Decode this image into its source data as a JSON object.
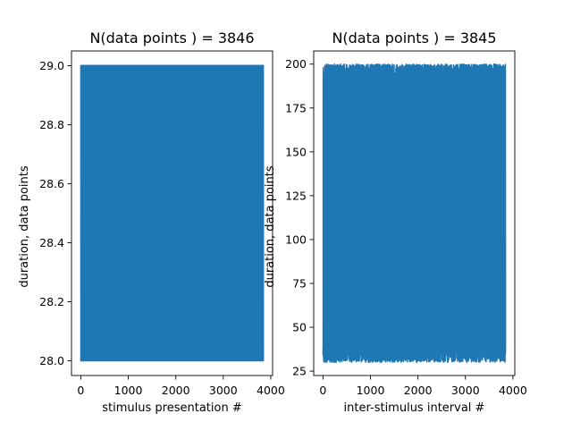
{
  "chart_data": [
    {
      "type": "line",
      "title": "N(data points ) = 3846",
      "xlabel": "stimulus presentation #",
      "ylabel": "duration, data points",
      "xlim": [
        -196,
        4039
      ],
      "ylim": [
        27.95,
        29.05
      ],
      "x_ticks": [
        0,
        1000,
        2000,
        3000,
        4000
      ],
      "x_tick_labels": [
        "0",
        "1000",
        "2000",
        "3000",
        "4000"
      ],
      "y_ticks": [
        28.0,
        28.2,
        28.4,
        28.6,
        28.8,
        29.0
      ],
      "y_tick_labels": [
        "28.0",
        "28.2",
        "28.4",
        "28.6",
        "28.8",
        "29.0"
      ],
      "grid": false,
      "series": [
        {
          "color": "#1f77b4",
          "n_points": 3846,
          "x_range": [
            0,
            3845
          ],
          "values_range": [
            28.0,
            29.0
          ],
          "pattern": "values alternate between 28 and 29 across all points"
        }
      ]
    },
    {
      "type": "line",
      "title": "N(data points ) = 3845",
      "xlabel": "inter-stimulus interval #",
      "ylabel": "duration, data points",
      "xlim": [
        -196,
        4040
      ],
      "ylim": [
        22.5,
        207.5
      ],
      "x_ticks": [
        0,
        1000,
        2000,
        3000,
        4000
      ],
      "x_tick_labels": [
        "0",
        "1000",
        "2000",
        "3000",
        "4000"
      ],
      "y_ticks": [
        25,
        50,
        75,
        100,
        125,
        150,
        175,
        200
      ],
      "y_tick_labels": [
        "25",
        "50",
        "75",
        "100",
        "125",
        "150",
        "175",
        "200"
      ],
      "grid": false,
      "series": [
        {
          "color": "#1f77b4",
          "n_points": 3845,
          "x_range": [
            0,
            3844
          ],
          "values_range": [
            30,
            200
          ],
          "pattern": "values fluctuate densely between about 30 and 200 across all points"
        }
      ]
    }
  ]
}
